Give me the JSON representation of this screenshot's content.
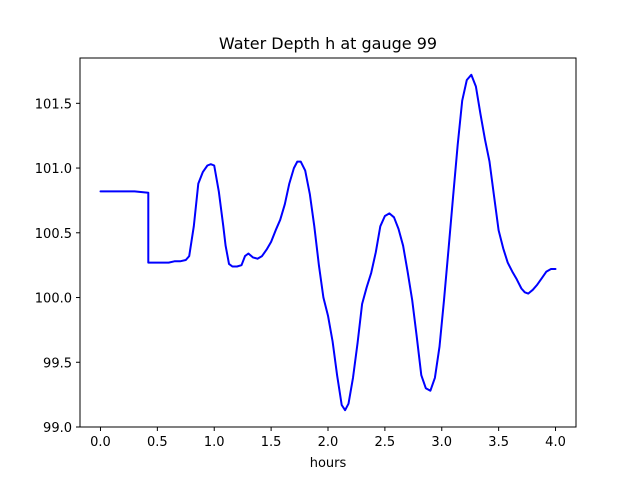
{
  "chart_data": {
    "type": "line",
    "title": "Water Depth h at gauge 99",
    "xlabel": "hours",
    "ylabel": "",
    "xlim": [
      -0.18,
      4.18
    ],
    "ylim": [
      99.0,
      101.85
    ],
    "xticks": [
      0.0,
      0.5,
      1.0,
      1.5,
      2.0,
      2.5,
      3.0,
      3.5,
      4.0
    ],
    "xtick_labels": [
      "0.0",
      "0.5",
      "1.0",
      "1.5",
      "2.0",
      "2.5",
      "3.0",
      "3.5",
      "4.0"
    ],
    "yticks": [
      99.0,
      99.5,
      100.0,
      100.5,
      101.0,
      101.5
    ],
    "ytick_labels": [
      "99.0",
      "99.5",
      "100.0",
      "100.5",
      "101.0",
      "101.5"
    ],
    "grid": false,
    "series": [
      {
        "color": "#0000ff",
        "x": [
          0.0,
          0.1,
          0.2,
          0.3,
          0.42,
          0.42,
          0.5,
          0.6,
          0.65,
          0.7,
          0.75,
          0.78,
          0.82,
          0.86,
          0.9,
          0.94,
          0.97,
          1.0,
          1.04,
          1.08,
          1.1,
          1.13,
          1.16,
          1.2,
          1.24,
          1.27,
          1.3,
          1.34,
          1.38,
          1.42,
          1.46,
          1.5,
          1.54,
          1.58,
          1.62,
          1.66,
          1.7,
          1.73,
          1.76,
          1.8,
          1.84,
          1.88,
          1.92,
          1.96,
          2.0,
          2.04,
          2.08,
          2.12,
          2.15,
          2.18,
          2.22,
          2.26,
          2.3,
          2.34,
          2.38,
          2.42,
          2.46,
          2.5,
          2.54,
          2.58,
          2.62,
          2.66,
          2.7,
          2.74,
          2.78,
          2.82,
          2.86,
          2.9,
          2.94,
          2.98,
          3.02,
          3.06,
          3.1,
          3.14,
          3.18,
          3.22,
          3.26,
          3.3,
          3.34,
          3.38,
          3.42,
          3.46,
          3.5,
          3.54,
          3.58,
          3.62,
          3.66,
          3.7,
          3.73,
          3.76,
          3.8,
          3.84,
          3.88,
          3.92,
          3.96,
          4.0
        ],
        "y": [
          100.82,
          100.82,
          100.82,
          100.82,
          100.81,
          100.27,
          100.27,
          100.27,
          100.28,
          100.28,
          100.29,
          100.32,
          100.55,
          100.88,
          100.97,
          101.02,
          101.03,
          101.02,
          100.82,
          100.55,
          100.4,
          100.26,
          100.24,
          100.24,
          100.25,
          100.32,
          100.34,
          100.31,
          100.3,
          100.32,
          100.37,
          100.43,
          100.52,
          100.6,
          100.72,
          100.88,
          101.0,
          101.05,
          101.05,
          100.98,
          100.8,
          100.55,
          100.25,
          100.0,
          99.86,
          99.66,
          99.4,
          99.17,
          99.13,
          99.18,
          99.38,
          99.65,
          99.95,
          100.08,
          100.19,
          100.35,
          100.55,
          100.63,
          100.65,
          100.62,
          100.53,
          100.4,
          100.2,
          99.98,
          99.7,
          99.4,
          99.3,
          99.28,
          99.38,
          99.62,
          99.98,
          100.38,
          100.78,
          101.18,
          101.52,
          101.68,
          101.72,
          101.63,
          101.42,
          101.22,
          101.05,
          100.78,
          100.52,
          100.38,
          100.27,
          100.2,
          100.14,
          100.07,
          100.04,
          100.03,
          100.06,
          100.1,
          100.15,
          100.2,
          100.22,
          100.22
        ]
      }
    ]
  }
}
